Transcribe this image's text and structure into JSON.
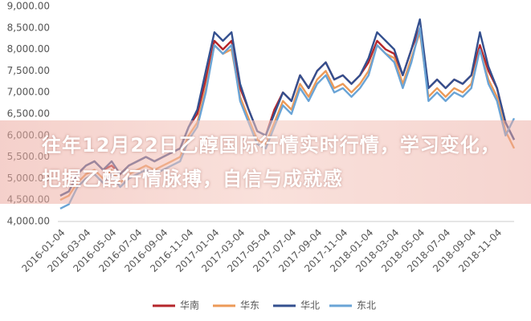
{
  "chart_data": {
    "type": "line",
    "categories": [
      "2016-01-04",
      null,
      null,
      "2016-03-04",
      null,
      null,
      "2016-05-04",
      null,
      null,
      "2016-07-04",
      null,
      null,
      "2016-09-04",
      null,
      null,
      "2016-11-04",
      null,
      null,
      "2017-01-04",
      null,
      null,
      "2017-03-04",
      null,
      null,
      "2017-05-04",
      null,
      null,
      "2017-07-04",
      null,
      null,
      "2017-09-04",
      null,
      null,
      "2017-11-04",
      null,
      null,
      "2018-01-04",
      null,
      null,
      "2018-03-04",
      null,
      null,
      "2018-05-04",
      null,
      null,
      "2018-07-04",
      null,
      null,
      "2018-09-04",
      null,
      null,
      "2018-11-04",
      null,
      null
    ],
    "series": [
      {
        "name": "华南",
        "color": "#b5262b",
        "values": [
          4600,
          4700,
          5100,
          5300,
          5400,
          5200,
          5300,
          5100,
          5300,
          5400,
          5500,
          5400,
          5500,
          5600,
          5700,
          6200,
          6500,
          7300,
          8200,
          8000,
          8200,
          7100,
          6600,
          6100,
          6000,
          6600,
          7000,
          6800,
          7400,
          7100,
          7500,
          7700,
          7300,
          7400,
          7200,
          7400,
          7700,
          8200,
          8000,
          7900,
          7400,
          8000,
          8500,
          7100,
          7300,
          7100,
          7300,
          7200,
          7400,
          8100,
          7500,
          7100,
          6300,
          5900
        ]
      },
      {
        "name": "华东",
        "color": "#ec9a58",
        "values": [
          4500,
          4600,
          4900,
          5100,
          5200,
          5000,
          5200,
          4900,
          5100,
          5200,
          5300,
          5200,
          5300,
          5400,
          5500,
          6000,
          6300,
          7100,
          8100,
          7900,
          8000,
          6900,
          6400,
          5900,
          5800,
          6300,
          6800,
          6600,
          7200,
          6900,
          7300,
          7500,
          7100,
          7200,
          7000,
          7200,
          7500,
          8100,
          7900,
          7800,
          7200,
          7800,
          8400,
          6900,
          7100,
          6900,
          7100,
          7000,
          7200,
          8000,
          7300,
          6900,
          6100,
          5700
        ]
      },
      {
        "name": "华北",
        "color": "#34508f",
        "values": [
          4600,
          4700,
          5100,
          5300,
          5400,
          5200,
          5400,
          5100,
          5300,
          5400,
          5500,
          5400,
          5500,
          5600,
          5700,
          6200,
          6600,
          7500,
          8400,
          8200,
          8400,
          7200,
          6600,
          6100,
          6000,
          6500,
          7000,
          6800,
          7400,
          7100,
          7500,
          7700,
          7300,
          7400,
          7200,
          7400,
          7800,
          8400,
          8200,
          8000,
          7400,
          8000,
          8700,
          7100,
          7300,
          7100,
          7300,
          7200,
          7400,
          8400,
          7600,
          7100,
          6300,
          5900
        ]
      },
      {
        "name": "东北",
        "color": "#6aa4d6",
        "values": [
          4300,
          4400,
          4800,
          5000,
          5100,
          4900,
          5100,
          4800,
          5000,
          5100,
          5200,
          5100,
          5200,
          5300,
          5400,
          5900,
          6200,
          7000,
          8100,
          7900,
          8100,
          6800,
          6300,
          5800,
          5700,
          6200,
          6700,
          6500,
          7100,
          6800,
          7200,
          7400,
          7000,
          7100,
          6900,
          7100,
          7400,
          8100,
          7900,
          7700,
          7100,
          7700,
          8500,
          6800,
          7000,
          6800,
          7000,
          6900,
          7100,
          8000,
          7200,
          6800,
          6000,
          6400
        ]
      }
    ],
    "ylim": [
      4000,
      9000
    ],
    "yticks": [
      {
        "value": 4000,
        "label": "4,000.00"
      },
      {
        "value": 4500,
        "label": "4,500.00"
      },
      {
        "value": 5000,
        "label": "5,000.00"
      },
      {
        "value": 5500,
        "label": "5,500.00"
      },
      {
        "value": 6000,
        "label": "6,000.00"
      },
      {
        "value": 6500,
        "label": "6,500.00"
      },
      {
        "value": 7000,
        "label": "7,000.00"
      },
      {
        "value": 7500,
        "label": "7,500.00"
      },
      {
        "value": 8000,
        "label": "8,000.00"
      },
      {
        "value": 8500,
        "label": "8,500.00"
      },
      {
        "value": 9000,
        "label": "9,000.00"
      }
    ],
    "grid": false
  },
  "overlay_title": "往年12月22日乙醇国际行情实时行情，学习变化，把握乙醇行情脉搏，自信与成就感"
}
